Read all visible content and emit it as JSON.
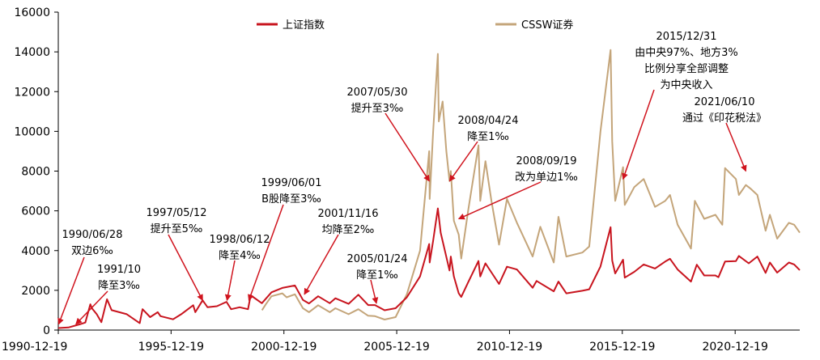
{
  "chart_data": {
    "type": "line",
    "title": "",
    "xlabel": "",
    "ylabel": "",
    "ylim": [
      0,
      16000
    ],
    "xlim": [
      "1990-12-19",
      "2023-10-31"
    ],
    "grid": false,
    "legend_position": "top",
    "y_ticks": [
      0,
      2000,
      4000,
      6000,
      8000,
      10000,
      12000,
      14000,
      16000
    ],
    "x_ticks": [
      "1990-12-19",
      "1995-12-19",
      "2000-12-19",
      "2005-12-19",
      "2010-12-19",
      "2015-12-19",
      "2020-12-19"
    ],
    "series": [
      {
        "name": "上证指数",
        "color": "#c8141e",
        "points": [
          [
            "1990-12-19",
            100
          ],
          [
            "1991-06-01",
            130
          ],
          [
            "1991-12-01",
            290
          ],
          [
            "1992-03-01",
            380
          ],
          [
            "1992-05-21",
            1300
          ],
          [
            "1992-06-15",
            1100
          ],
          [
            "1992-09-01",
            800
          ],
          [
            "1992-11-15",
            400
          ],
          [
            "1993-02-15",
            1550
          ],
          [
            "1993-05-01",
            1000
          ],
          [
            "1993-09-01",
            900
          ],
          [
            "1994-01-01",
            800
          ],
          [
            "1994-07-29",
            350
          ],
          [
            "1994-09-13",
            1050
          ],
          [
            "1995-01-15",
            650
          ],
          [
            "1995-05-18",
            900
          ],
          [
            "1995-07-01",
            700
          ],
          [
            "1996-01-20",
            540
          ],
          [
            "1996-06-01",
            800
          ],
          [
            "1996-12-11",
            1250
          ],
          [
            "1997-01-15",
            900
          ],
          [
            "1997-05-12",
            1500
          ],
          [
            "1997-08-01",
            1150
          ],
          [
            "1997-12-31",
            1200
          ],
          [
            "1998-06-03",
            1420
          ],
          [
            "1998-08-17",
            1050
          ],
          [
            "1999-01-01",
            1150
          ],
          [
            "1999-05-18",
            1050
          ],
          [
            "1999-06-30",
            1750
          ],
          [
            "1999-12-28",
            1350
          ],
          [
            "2000-06-01",
            1900
          ],
          [
            "2000-11-23",
            2120
          ],
          [
            "2001-06-14",
            2245
          ],
          [
            "2001-10-22",
            1520
          ],
          [
            "2002-01-29",
            1340
          ],
          [
            "2002-06-25",
            1700
          ],
          [
            "2003-01-01",
            1350
          ],
          [
            "2003-04-01",
            1600
          ],
          [
            "2003-11-01",
            1320
          ],
          [
            "2004-04-07",
            1780
          ],
          [
            "2004-09-13",
            1260
          ],
          [
            "2005-01-01",
            1260
          ],
          [
            "2005-06-06",
            998
          ],
          [
            "2005-12-01",
            1100
          ],
          [
            "2006-06-01",
            1650
          ],
          [
            "2006-12-31",
            2700
          ],
          [
            "2007-05-29",
            4330
          ],
          [
            "2007-06-05",
            3400
          ],
          [
            "2007-08-01",
            4500
          ],
          [
            "2007-10-16",
            6124
          ],
          [
            "2007-12-01",
            4900
          ],
          [
            "2008-04-22",
            3000
          ],
          [
            "2008-05-12",
            3700
          ],
          [
            "2008-07-01",
            2700
          ],
          [
            "2008-09-18",
            1850
          ],
          [
            "2008-10-28",
            1664
          ],
          [
            "2009-02-17",
            2400
          ],
          [
            "2009-08-04",
            3478
          ],
          [
            "2009-09-01",
            2700
          ],
          [
            "2009-11-24",
            3360
          ],
          [
            "2010-07-02",
            2320
          ],
          [
            "2010-11-08",
            3186
          ],
          [
            "2011-04-18",
            3050
          ],
          [
            "2011-12-28",
            2130
          ],
          [
            "2012-03-01",
            2470
          ],
          [
            "2012-12-04",
            1950
          ],
          [
            "2013-02-18",
            2440
          ],
          [
            "2013-06-25",
            1850
          ],
          [
            "2014-03-12",
            1980
          ],
          [
            "2014-07-01",
            2050
          ],
          [
            "2014-12-31",
            3200
          ],
          [
            "2015-06-12",
            5178
          ],
          [
            "2015-07-08",
            3500
          ],
          [
            "2015-08-26",
            2850
          ],
          [
            "2015-12-31",
            3540
          ],
          [
            "2016-01-28",
            2640
          ],
          [
            "2016-07-01",
            2930
          ],
          [
            "2016-11-29",
            3300
          ],
          [
            "2017-06-01",
            3100
          ],
          [
            "2017-11-13",
            3450
          ],
          [
            "2018-01-29",
            3587
          ],
          [
            "2018-06-01",
            3050
          ],
          [
            "2019-01-04",
            2440
          ],
          [
            "2019-04-08",
            3288
          ],
          [
            "2019-08-06",
            2750
          ],
          [
            "2020-02-03",
            2750
          ],
          [
            "2020-03-23",
            2660
          ],
          [
            "2020-07-09",
            3450
          ],
          [
            "2020-12-31",
            3470
          ],
          [
            "2021-02-18",
            3731
          ],
          [
            "2021-07-28",
            3360
          ],
          [
            "2021-12-13",
            3700
          ],
          [
            "2022-04-26",
            2880
          ],
          [
            "2022-07-04",
            3400
          ],
          [
            "2022-10-31",
            2890
          ],
          [
            "2023-05-09",
            3400
          ],
          [
            "2023-08-01",
            3300
          ],
          [
            "2023-10-31",
            3018
          ]
        ]
      },
      {
        "name": "CSSW证券",
        "color": "#c4a57a",
        "points": [
          [
            "1999-12-30",
            1000
          ],
          [
            "2000-03-01",
            1300
          ],
          [
            "2000-06-01",
            1700
          ],
          [
            "2000-11-23",
            1850
          ],
          [
            "2001-02-01",
            1650
          ],
          [
            "2001-06-14",
            1800
          ],
          [
            "2001-10-22",
            1100
          ],
          [
            "2002-01-29",
            900
          ],
          [
            "2002-06-25",
            1250
          ],
          [
            "2003-01-01",
            900
          ],
          [
            "2003-04-01",
            1100
          ],
          [
            "2003-11-01",
            800
          ],
          [
            "2004-04-07",
            1050
          ],
          [
            "2004-09-13",
            720
          ],
          [
            "2005-01-01",
            700
          ],
          [
            "2005-06-06",
            530
          ],
          [
            "2005-12-01",
            650
          ],
          [
            "2006-06-01",
            1800
          ],
          [
            "2006-12-31",
            4000
          ],
          [
            "2007-05-29",
            9000
          ],
          [
            "2007-06-05",
            6600
          ],
          [
            "2007-08-01",
            10000
          ],
          [
            "2007-10-16",
            13900
          ],
          [
            "2007-11-01",
            10500
          ],
          [
            "2008-01-01",
            11500
          ],
          [
            "2008-03-01",
            9000
          ],
          [
            "2008-04-22",
            7500
          ],
          [
            "2008-05-12",
            8000
          ],
          [
            "2008-07-01",
            5500
          ],
          [
            "2008-09-18",
            4800
          ],
          [
            "2008-10-28",
            3600
          ],
          [
            "2009-02-17",
            6000
          ],
          [
            "2009-08-04",
            9300
          ],
          [
            "2009-09-01",
            6500
          ],
          [
            "2009-11-24",
            8500
          ],
          [
            "2010-03-01",
            6500
          ],
          [
            "2010-07-02",
            4300
          ],
          [
            "2010-11-08",
            6600
          ],
          [
            "2011-04-18",
            5400
          ],
          [
            "2011-12-28",
            3700
          ],
          [
            "2012-05-01",
            5200
          ],
          [
            "2012-12-04",
            3400
          ],
          [
            "2013-02-18",
            5700
          ],
          [
            "2013-06-25",
            3700
          ],
          [
            "2014-03-12",
            3900
          ],
          [
            "2014-07-01",
            4200
          ],
          [
            "2014-12-31",
            10000
          ],
          [
            "2015-06-12",
            14100
          ],
          [
            "2015-07-08",
            9500
          ],
          [
            "2015-08-26",
            6500
          ],
          [
            "2015-12-31",
            8200
          ],
          [
            "2016-01-28",
            6300
          ],
          [
            "2016-07-01",
            7200
          ],
          [
            "2016-11-29",
            7600
          ],
          [
            "2017-06-01",
            6200
          ],
          [
            "2017-11-13",
            6500
          ],
          [
            "2018-01-29",
            6800
          ],
          [
            "2018-06-01",
            5300
          ],
          [
            "2019-01-04",
            4100
          ],
          [
            "2019-03-07",
            6500
          ],
          [
            "2019-08-06",
            5600
          ],
          [
            "2020-02-03",
            5800
          ],
          [
            "2020-05-25",
            5300
          ],
          [
            "2020-07-09",
            8150
          ],
          [
            "2020-12-31",
            7600
          ],
          [
            "2021-02-18",
            6800
          ],
          [
            "2021-06-10",
            7300
          ],
          [
            "2021-09-01",
            7100
          ],
          [
            "2021-12-13",
            6800
          ],
          [
            "2022-04-26",
            5000
          ],
          [
            "2022-07-04",
            5800
          ],
          [
            "2022-10-31",
            4600
          ],
          [
            "2023-05-09",
            5400
          ],
          [
            "2023-08-01",
            5300
          ],
          [
            "2023-10-31",
            4900
          ]
        ]
      }
    ],
    "annotations": [
      {
        "lines": [
          "1990/06/28",
          "双边6‰"
        ],
        "target": [
          "1990-12-25",
          300
        ]
      },
      {
        "lines": [
          "1991/10",
          "降至3‰"
        ],
        "target": [
          "1991-10-01",
          300
        ]
      },
      {
        "lines": [
          "1997/05/12",
          "提升至5‰"
        ],
        "target": [
          "1997-05-12",
          1500
        ]
      },
      {
        "lines": [
          "1998/06/12",
          "降至4‰"
        ],
        "target": [
          "1998-06-12",
          1500
        ]
      },
      {
        "lines": [
          "1999/06/01",
          "B股降至3‰"
        ],
        "target": [
          "1999-06-01",
          1500
        ]
      },
      {
        "lines": [
          "2001/11/16",
          "均降至2‰"
        ],
        "target": [
          "2001-11-16",
          1800
        ]
      },
      {
        "lines": [
          "2005/01/24",
          "降至1‰"
        ],
        "target": [
          "2005-01-24",
          1350
        ]
      },
      {
        "lines": [
          "2007/05/30",
          "提升至3‰"
        ],
        "target": [
          "2007-05-30",
          7500
        ]
      },
      {
        "lines": [
          "2008/04/24",
          "降至1‰"
        ],
        "target": [
          "2008-04-24",
          7500
        ]
      },
      {
        "lines": [
          "2008/09/19",
          "改为单边1‰"
        ],
        "target": [
          "2008-09-19",
          5600
        ]
      },
      {
        "lines": [
          "2015/12/31",
          "由中央97%、地方3%",
          "比例分享全部调整",
          "为中央收入"
        ],
        "target": [
          "2015-12-31",
          7600
        ]
      },
      {
        "lines": [
          "2021/06/10",
          "通过《印花税法》"
        ],
        "target": [
          "2021-06-10",
          8000
        ]
      }
    ]
  }
}
